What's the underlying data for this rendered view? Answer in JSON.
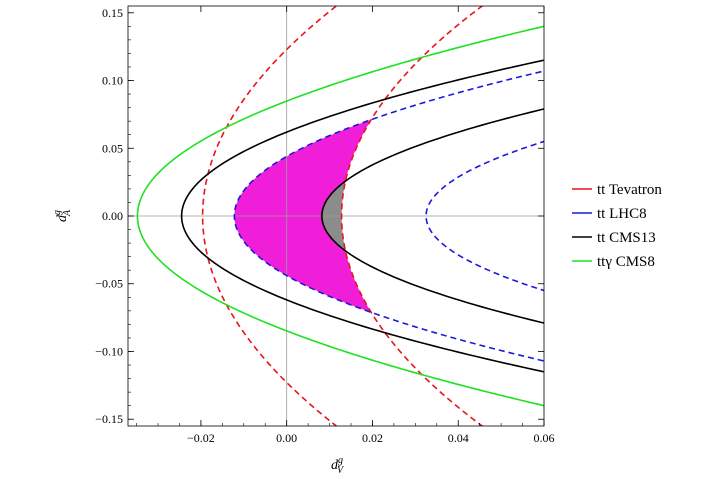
{
  "chart_data": {
    "type": "line",
    "title": "",
    "xlabel": {
      "base": "d",
      "sup": "g",
      "sub": "V"
    },
    "ylabel": {
      "base": "d",
      "sup": "g",
      "sub": "A"
    },
    "xlim": [
      -0.037,
      0.06
    ],
    "ylim": [
      -0.155,
      0.155
    ],
    "xticks": [
      {
        "value": -0.02,
        "label": "−0.02"
      },
      {
        "value": 0.0,
        "label": "0.00"
      },
      {
        "value": 0.02,
        "label": "0.02"
      },
      {
        "value": 0.04,
        "label": "0.04"
      },
      {
        "value": 0.06,
        "label": "0.06"
      }
    ],
    "yticks": [
      {
        "value": 0.15,
        "label": "0.15"
      },
      {
        "value": 0.1,
        "label": "0.10"
      },
      {
        "value": 0.05,
        "label": "0.05"
      },
      {
        "value": 0.0,
        "label": "0.00"
      },
      {
        "value": -0.05,
        "label": "−0.05"
      },
      {
        "value": -0.1,
        "label": "−0.10"
      },
      {
        "value": -0.15,
        "label": "−0.15"
      }
    ],
    "legend_position": "right",
    "series": [
      {
        "name": "tt Tevatron",
        "color": "#e8141a",
        "style": "dashed",
        "curves": [
          {
            "vertex": -0.0196,
            "a_at_xmax": [
              0.0096,
              0.15
            ]
          },
          {
            "vertex": 0.0128,
            "a_at_xmax": [
              0.0435,
              0.15
            ]
          }
        ]
      },
      {
        "name": "tt LHC8",
        "color": "#1a1adc",
        "style": "dashed",
        "curves": [
          {
            "vertex": -0.0122,
            "a_at_xmax": [
              0.06,
              0.107
            ]
          },
          {
            "vertex": 0.0325,
            "a_at_xmax": [
              0.06,
              0.055
            ]
          }
        ]
      },
      {
        "name": "tt CMS13",
        "color": "#000000",
        "style": "solid",
        "curves": [
          {
            "vertex": -0.0245,
            "a_at_xmax": [
              0.06,
              0.115
            ]
          },
          {
            "vertex": 0.0082,
            "a_at_xmax": [
              0.06,
              0.079
            ]
          }
        ]
      },
      {
        "name": "ttγ CMS8",
        "color": "#22e022",
        "style": "solid",
        "curves": [
          {
            "vertex": -0.0348,
            "a_at_xmax": [
              0.06,
              0.14
            ]
          }
        ]
      }
    ],
    "fill_regions": [
      {
        "color": "#f01ed9"
      },
      {
        "color": "#8c8c8c"
      }
    ]
  }
}
